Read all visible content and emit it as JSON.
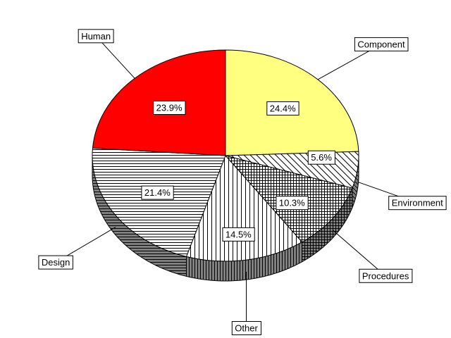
{
  "chart_data": {
    "type": "pie",
    "title": "",
    "slices": [
      {
        "label": "Component",
        "value": 24.4,
        "value_label": "24.4%",
        "fill": "#ffff80",
        "pattern": "solid"
      },
      {
        "label": "Environment",
        "value": 5.6,
        "value_label": "5.6%",
        "fill": "#ffffff",
        "pattern": "diagonal-lines"
      },
      {
        "label": "Procedures",
        "value": 10.3,
        "value_label": "10.3%",
        "fill": "#ffffff",
        "pattern": "cross-hatch"
      },
      {
        "label": "Other",
        "value": 14.5,
        "value_label": "14.5%",
        "fill": "#ffffff",
        "pattern": "vertical-lines"
      },
      {
        "label": "Design",
        "value": 21.4,
        "value_label": "21.4%",
        "fill": "#ffffff",
        "pattern": "horizontal-lines"
      },
      {
        "label": "Human",
        "value": 23.9,
        "value_label": "23.9%",
        "fill": "#ff0000",
        "pattern": "solid"
      }
    ],
    "legend": "none",
    "style": "3d-tilted-pie"
  }
}
